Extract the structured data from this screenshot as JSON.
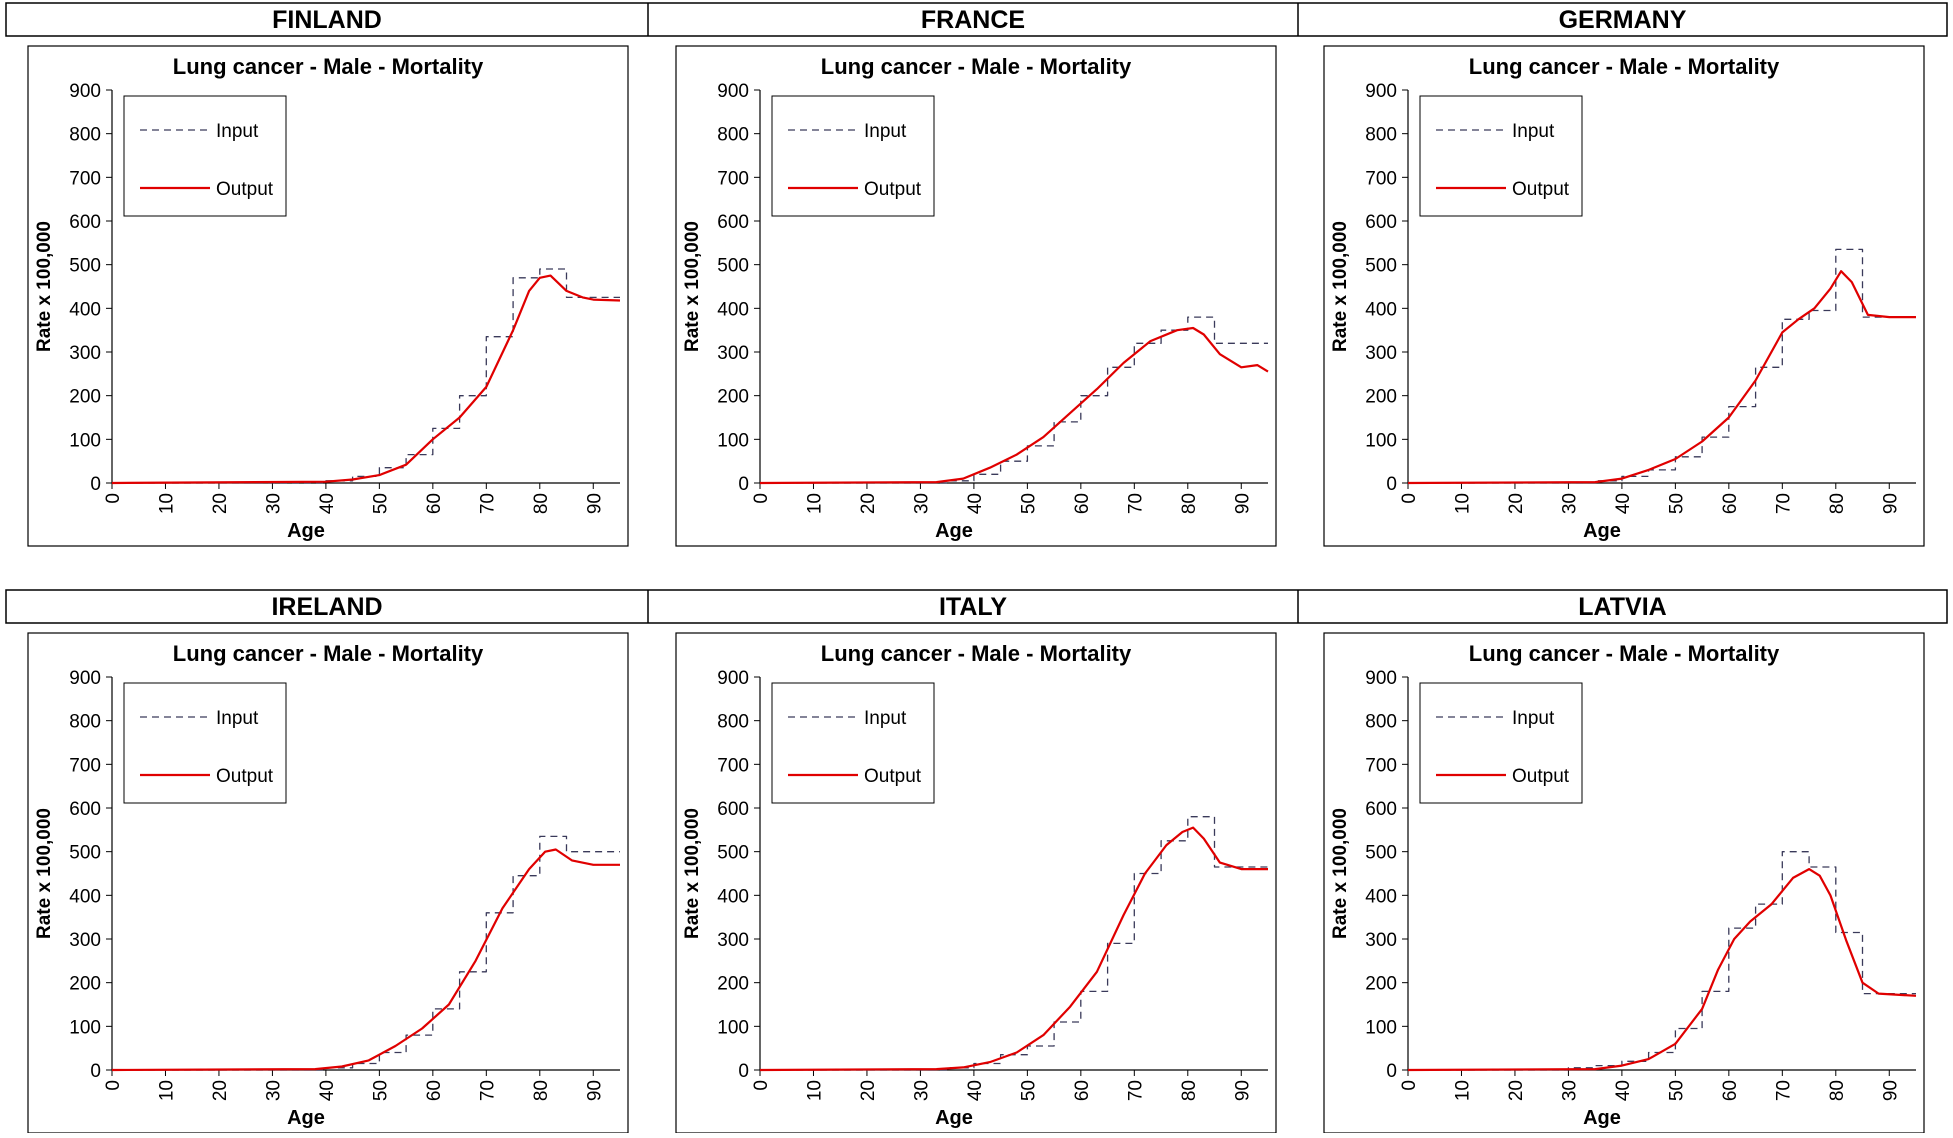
{
  "figure": {
    "rows": [
      {
        "headers": [
          "FINLAND",
          "FRANCE",
          "GERMANY"
        ]
      },
      {
        "headers": [
          "IRELAND",
          "ITALY",
          "LATVIA"
        ]
      }
    ]
  },
  "colors": {
    "input_line": "#3a3a5a",
    "output_line": "#e00000",
    "axis": "#000000"
  },
  "chart_data": [
    {
      "country": "FINLAND",
      "type": "line",
      "title": "Lung cancer - Male - Mortality",
      "xlabel": "Age",
      "ylabel": "Rate x 100,000",
      "xlim": [
        0,
        95
      ],
      "ylim": [
        0,
        900
      ],
      "xticks": [
        0,
        10,
        20,
        30,
        40,
        50,
        60,
        70,
        80,
        90
      ],
      "yticks": [
        0,
        100,
        200,
        300,
        400,
        500,
        600,
        700,
        800,
        900
      ],
      "legend_position": "top-left",
      "series": [
        {
          "name": "Input",
          "style": "dashed",
          "step": true,
          "x": [
            0,
            40,
            45,
            50,
            55,
            60,
            65,
            70,
            75,
            80,
            85
          ],
          "y": [
            0,
            5,
            15,
            35,
            65,
            125,
            200,
            335,
            470,
            490,
            425
          ]
        },
        {
          "name": "Output",
          "style": "solid",
          "x": [
            0,
            40,
            45,
            50,
            55,
            60,
            65,
            70,
            75,
            78,
            80,
            82,
            85,
            88,
            90,
            95
          ],
          "y": [
            0,
            3,
            8,
            18,
            42,
            100,
            150,
            220,
            350,
            440,
            470,
            475,
            440,
            425,
            420,
            418
          ]
        }
      ]
    },
    {
      "country": "FRANCE",
      "type": "line",
      "title": "Lung cancer - Male - Mortality",
      "xlabel": "Age",
      "ylabel": "Rate x 100,000",
      "xlim": [
        0,
        95
      ],
      "ylim": [
        0,
        900
      ],
      "xticks": [
        0,
        10,
        20,
        30,
        40,
        50,
        60,
        70,
        80,
        90
      ],
      "yticks": [
        0,
        100,
        200,
        300,
        400,
        500,
        600,
        700,
        800,
        900
      ],
      "legend_position": "top-left",
      "series": [
        {
          "name": "Input",
          "style": "dashed",
          "step": true,
          "x": [
            0,
            35,
            40,
            45,
            50,
            55,
            60,
            65,
            70,
            75,
            80,
            85
          ],
          "y": [
            0,
            5,
            20,
            50,
            85,
            140,
            200,
            265,
            320,
            350,
            380,
            320
          ]
        },
        {
          "name": "Output",
          "style": "solid",
          "x": [
            0,
            33,
            38,
            43,
            48,
            53,
            58,
            63,
            68,
            73,
            78,
            81,
            83,
            86,
            90,
            93,
            95
          ],
          "y": [
            0,
            2,
            10,
            35,
            65,
            105,
            160,
            215,
            275,
            325,
            350,
            355,
            340,
            295,
            265,
            270,
            255
          ]
        }
      ]
    },
    {
      "country": "GERMANY",
      "type": "line",
      "title": "Lung cancer - Male - Mortality",
      "xlabel": "Age",
      "ylabel": "Rate x 100,000",
      "xlim": [
        0,
        95
      ],
      "ylim": [
        0,
        900
      ],
      "xticks": [
        0,
        10,
        20,
        30,
        40,
        50,
        60,
        70,
        80,
        90
      ],
      "yticks": [
        0,
        100,
        200,
        300,
        400,
        500,
        600,
        700,
        800,
        900
      ],
      "legend_position": "top-left",
      "series": [
        {
          "name": "Input",
          "style": "dashed",
          "step": true,
          "x": [
            0,
            35,
            40,
            45,
            50,
            55,
            60,
            65,
            70,
            75,
            80,
            85
          ],
          "y": [
            0,
            5,
            15,
            30,
            60,
            105,
            175,
            265,
            375,
            395,
            535,
            380
          ]
        },
        {
          "name": "Output",
          "style": "solid",
          "x": [
            0,
            35,
            40,
            45,
            50,
            55,
            60,
            65,
            70,
            73,
            76,
            79,
            81,
            83,
            86,
            90,
            95
          ],
          "y": [
            0,
            2,
            10,
            30,
            55,
            95,
            150,
            235,
            345,
            375,
            400,
            445,
            485,
            460,
            385,
            380,
            380
          ]
        }
      ]
    },
    {
      "country": "IRELAND",
      "type": "line",
      "title": "Lung cancer - Male - Mortality",
      "xlabel": "Age",
      "ylabel": "Rate x 100,000",
      "xlim": [
        0,
        95
      ],
      "ylim": [
        0,
        900
      ],
      "xticks": [
        0,
        10,
        20,
        30,
        40,
        50,
        60,
        70,
        80,
        90
      ],
      "yticks": [
        0,
        100,
        200,
        300,
        400,
        500,
        600,
        700,
        800,
        900
      ],
      "legend_position": "top-left",
      "series": [
        {
          "name": "Input",
          "style": "dashed",
          "step": true,
          "x": [
            0,
            40,
            45,
            50,
            55,
            60,
            65,
            70,
            75,
            80,
            85
          ],
          "y": [
            0,
            5,
            15,
            40,
            80,
            140,
            225,
            360,
            445,
            535,
            500
          ]
        },
        {
          "name": "Output",
          "style": "solid",
          "x": [
            0,
            38,
            43,
            48,
            53,
            58,
            63,
            68,
            73,
            78,
            81,
            83,
            86,
            90,
            95
          ],
          "y": [
            0,
            2,
            8,
            22,
            55,
            95,
            150,
            250,
            370,
            460,
            500,
            505,
            480,
            470,
            470
          ]
        }
      ]
    },
    {
      "country": "ITALY",
      "type": "line",
      "title": "Lung cancer - Male - Mortality",
      "xlabel": "Age",
      "ylabel": "Rate x 100,000",
      "xlim": [
        0,
        95
      ],
      "ylim": [
        0,
        900
      ],
      "xticks": [
        0,
        10,
        20,
        30,
        40,
        50,
        60,
        70,
        80,
        90
      ],
      "yticks": [
        0,
        100,
        200,
        300,
        400,
        500,
        600,
        700,
        800,
        900
      ],
      "legend_position": "top-left",
      "series": [
        {
          "name": "Input",
          "style": "dashed",
          "step": true,
          "x": [
            0,
            35,
            40,
            45,
            50,
            55,
            60,
            65,
            70,
            75,
            80,
            85
          ],
          "y": [
            0,
            5,
            15,
            35,
            55,
            110,
            180,
            290,
            450,
            525,
            580,
            465
          ]
        },
        {
          "name": "Output",
          "style": "solid",
          "x": [
            0,
            33,
            38,
            43,
            48,
            53,
            58,
            63,
            68,
            72,
            76,
            79,
            81,
            83,
            86,
            90,
            95
          ],
          "y": [
            0,
            2,
            6,
            18,
            40,
            80,
            145,
            225,
            355,
            450,
            515,
            545,
            555,
            530,
            475,
            460,
            460
          ]
        }
      ]
    },
    {
      "country": "LATVIA",
      "type": "line",
      "title": "Lung cancer - Male - Mortality",
      "xlabel": "Age",
      "ylabel": "Rate x 100,000",
      "xlim": [
        0,
        95
      ],
      "ylim": [
        0,
        900
      ],
      "xticks": [
        0,
        10,
        20,
        30,
        40,
        50,
        60,
        70,
        80,
        90
      ],
      "yticks": [
        0,
        100,
        200,
        300,
        400,
        500,
        600,
        700,
        800,
        900
      ],
      "legend_position": "top-left",
      "series": [
        {
          "name": "Input",
          "style": "dashed",
          "step": true,
          "x": [
            0,
            30,
            35,
            40,
            45,
            50,
            55,
            60,
            65,
            70,
            75,
            80,
            85
          ],
          "y": [
            0,
            5,
            10,
            20,
            40,
            95,
            180,
            325,
            380,
            500,
            465,
            315,
            175
          ]
        },
        {
          "name": "Output",
          "style": "solid",
          "x": [
            0,
            35,
            40,
            45,
            50,
            55,
            58,
            61,
            64,
            68,
            72,
            75,
            77,
            79,
            82,
            85,
            88,
            95
          ],
          "y": [
            0,
            2,
            10,
            25,
            60,
            140,
            230,
            300,
            340,
            380,
            440,
            460,
            445,
            400,
            295,
            200,
            175,
            170
          ]
        }
      ]
    }
  ]
}
